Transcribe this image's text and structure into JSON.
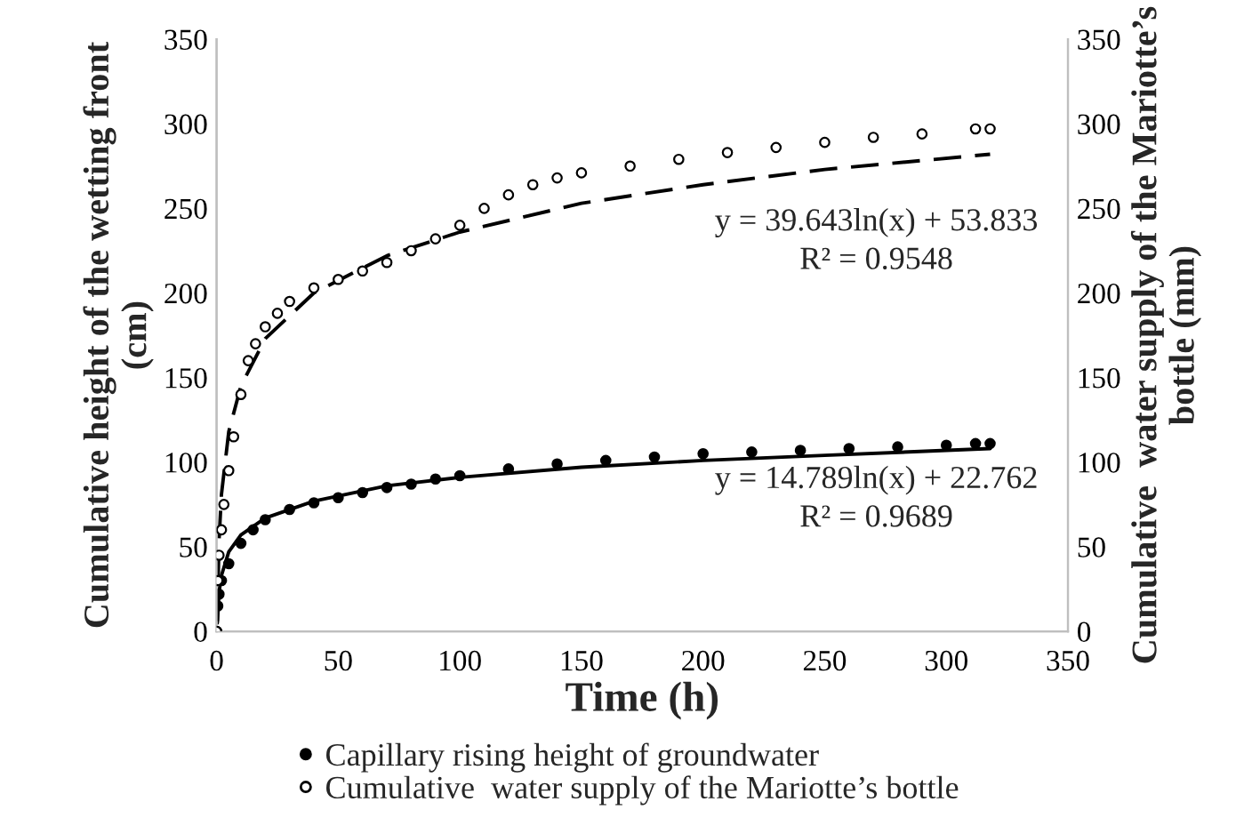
{
  "chart_data": {
    "type": "scatter",
    "xlabel": "Time (h)",
    "ylabel": "Cumulative height of the wetting front\n(cm)",
    "y2label": "Cumulative  water supply of the Mariotte’s\nbottle (mm)",
    "xlim": [
      0,
      350
    ],
    "xticks": [
      0,
      50,
      100,
      150,
      200,
      250,
      300,
      350
    ],
    "ylim": [
      0,
      350
    ],
    "yticks": [
      0,
      50,
      100,
      150,
      200,
      250,
      300,
      350
    ],
    "y2lim": [
      0,
      350
    ],
    "y2ticks": [
      0,
      50,
      100,
      150,
      200,
      250,
      300,
      350
    ],
    "grid": false,
    "legend": "bottom",
    "series": [
      {
        "name": "Capillary rising height of groundwater",
        "marker": "circle",
        "color": "#000000",
        "x": [
          0,
          0.5,
          1,
          2,
          5,
          10,
          15,
          20,
          30,
          40,
          50,
          60,
          70,
          80,
          90,
          100,
          120,
          140,
          160,
          180,
          200,
          220,
          240,
          260,
          280,
          300,
          312,
          318
        ],
        "values": [
          0,
          15,
          22,
          30,
          40,
          52,
          60,
          66,
          72,
          76,
          79,
          82,
          85,
          87,
          90,
          92,
          96,
          99,
          101,
          103,
          105,
          106,
          107,
          108,
          109,
          110,
          111,
          111
        ]
      },
      {
        "name": "Cumulative  water supply of the Mariotte’s bottle",
        "marker": "circle",
        "color": "#ffffff",
        "axis": "y2",
        "x": [
          0,
          0.5,
          1,
          2,
          3,
          5,
          7,
          10,
          13,
          16,
          20,
          25,
          30,
          40,
          50,
          60,
          70,
          80,
          90,
          100,
          110,
          120,
          130,
          140,
          150,
          170,
          190,
          210,
          230,
          250,
          270,
          290,
          312,
          318
        ],
        "values": [
          0,
          30,
          45,
          60,
          75,
          95,
          115,
          140,
          160,
          170,
          180,
          188,
          195,
          203,
          208,
          213,
          218,
          225,
          232,
          240,
          250,
          258,
          264,
          268,
          271,
          275,
          279,
          283,
          286,
          289,
          292,
          294,
          297,
          297
        ]
      },
      {
        "type": "line",
        "line_style": "solid",
        "color": "#000000",
        "x": [
          0.3,
          1,
          2,
          5,
          10,
          20,
          40,
          70,
          100,
          150,
          200,
          250,
          318
        ],
        "values": [
          5,
          23,
          33,
          47,
          57,
          67,
          77,
          86,
          91,
          97,
          101,
          104,
          108
        ]
      },
      {
        "type": "line",
        "line_style": "dashed",
        "color": "#000000",
        "axis": "y2",
        "x": [
          0.3,
          1,
          2,
          5,
          10,
          20,
          40,
          70,
          100,
          150,
          200,
          250,
          318
        ],
        "values": [
          6,
          54,
          81,
          118,
          145,
          173,
          200,
          222,
          236,
          253,
          264,
          273,
          282
        ]
      }
    ],
    "annotations": [
      "y = 39.643ln(x) + 53.833",
      "R² = 0.9548",
      "y = 14.789ln(x) + 22.762",
      "R² = 0.9689"
    ]
  }
}
